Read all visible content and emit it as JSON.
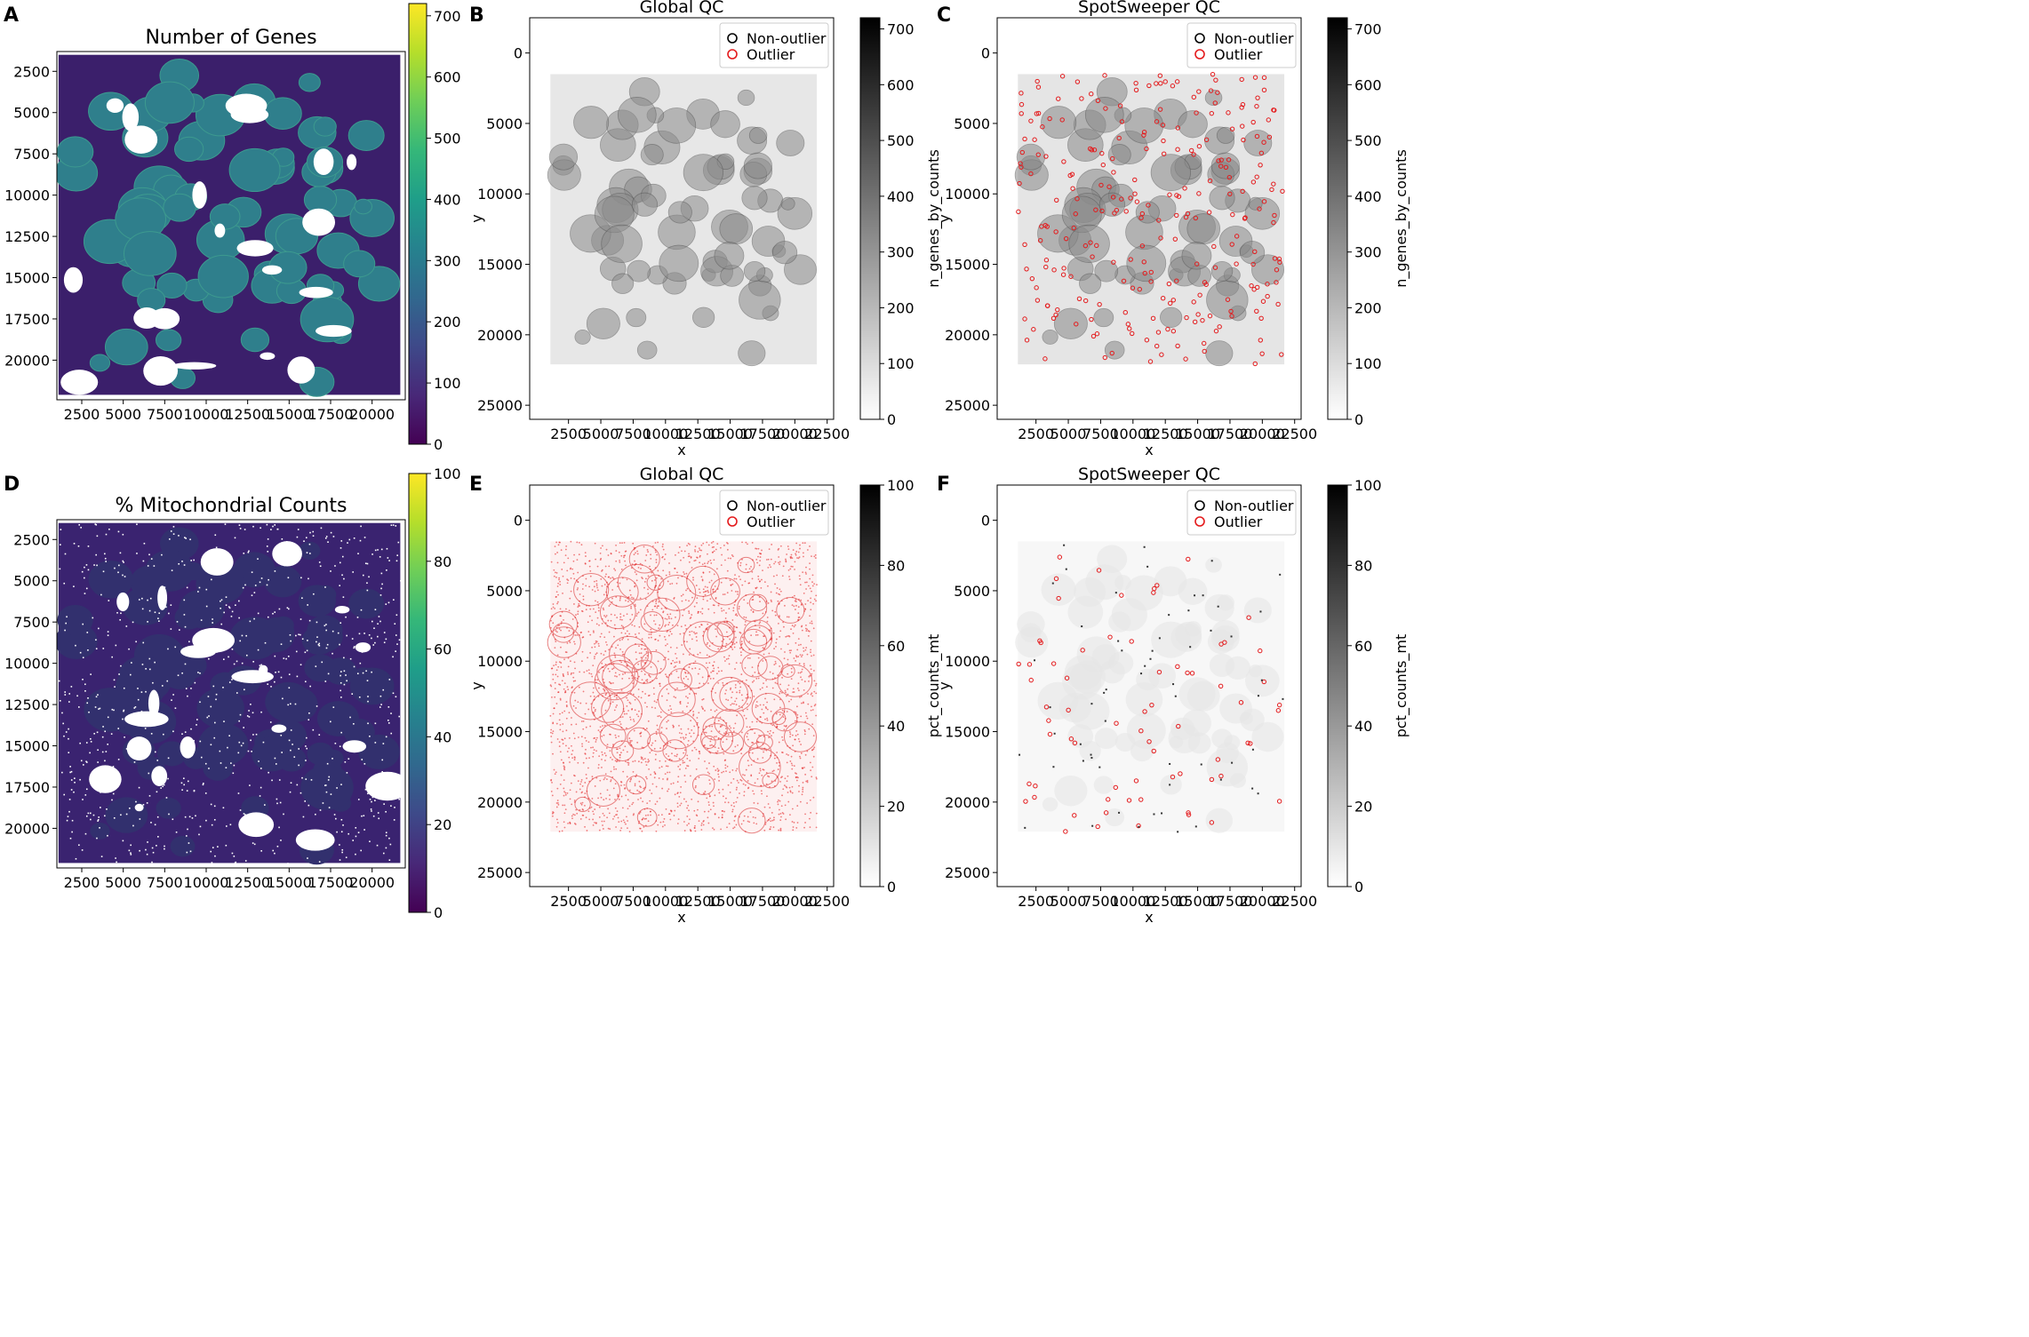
{
  "chart_data": [
    {
      "id": "A",
      "panel_label": "A",
      "type": "heatmap",
      "title": "Number of Genes",
      "xlabel": "",
      "ylabel": "",
      "xlim": [
        1000,
        22000
      ],
      "ylim": [
        22400,
        1300
      ],
      "y_inverted": true,
      "xticks": [
        2500,
        5000,
        7500,
        10000,
        12500,
        15000,
        17500,
        20000
      ],
      "xtick_labels": [
        "2500",
        "5000",
        "7500",
        "10000",
        "12500",
        "15000",
        "17500",
        "20000"
      ],
      "yticks": [
        2500,
        5000,
        7500,
        10000,
        12500,
        15000,
        17500,
        20000
      ],
      "ytick_labels": [
        "2500",
        "5000",
        "7500",
        "10000",
        "12500",
        "15000",
        "17500",
        "20000"
      ],
      "colorbar": {
        "label": "",
        "colormap": "viridis",
        "min": 0,
        "max": 720,
        "ticks": [
          0,
          100,
          200,
          300,
          400,
          500,
          600,
          700
        ],
        "tick_labels": [
          "0",
          "100",
          "200",
          "300",
          "400",
          "500",
          "600",
          "700"
        ]
      },
      "tissue_color": "#3b1f6b",
      "feature_color": "#2f7f8c"
    },
    {
      "id": "B",
      "panel_label": "B",
      "type": "scatter",
      "title": "Global QC",
      "xlabel": "x",
      "ylabel": "y",
      "xlim": [
        -500,
        23000
      ],
      "ylim": [
        26000,
        -2500
      ],
      "y_inverted": true,
      "xticks": [
        2500,
        5000,
        7500,
        10000,
        12500,
        15000,
        17500,
        20000,
        22500
      ],
      "xtick_labels": [
        "2500",
        "5000",
        "7500",
        "10000",
        "12500",
        "15000",
        "17500",
        "20000",
        "22500"
      ],
      "yticks": [
        0,
        5000,
        10000,
        15000,
        20000,
        25000
      ],
      "ytick_labels": [
        "0",
        "5000",
        "10000",
        "15000",
        "20000",
        "25000"
      ],
      "legend": {
        "position": "top-right",
        "entries": [
          {
            "label": "Non-outlier",
            "color": "#000000"
          },
          {
            "label": "Outlier",
            "color": "#e41a1c"
          }
        ]
      },
      "colorbar": {
        "label": "n_genes_by_counts",
        "colormap": "gray_r",
        "min": 0,
        "max": 720,
        "ticks": [
          0,
          100,
          200,
          300,
          400,
          500,
          600,
          700
        ],
        "tick_labels": [
          "0",
          "100",
          "200",
          "300",
          "400",
          "500",
          "600",
          "700"
        ]
      },
      "tissue_color": "#d4d4d4",
      "feature_color": "#8c8c8c",
      "outlier_density": "low"
    },
    {
      "id": "C",
      "panel_label": "C",
      "type": "scatter",
      "title": "SpotSweeper QC",
      "xlabel": "x",
      "ylabel": "y",
      "xlim": [
        -500,
        23000
      ],
      "ylim": [
        26000,
        -2500
      ],
      "y_inverted": true,
      "xticks": [
        2500,
        5000,
        7500,
        10000,
        12500,
        15000,
        17500,
        20000,
        22500
      ],
      "xtick_labels": [
        "2500",
        "5000",
        "7500",
        "10000",
        "12500",
        "15000",
        "17500",
        "20000",
        "22500"
      ],
      "yticks": [
        0,
        5000,
        10000,
        15000,
        20000,
        25000
      ],
      "ytick_labels": [
        "0",
        "5000",
        "10000",
        "15000",
        "20000",
        "25000"
      ],
      "legend": {
        "position": "top-right",
        "entries": [
          {
            "label": "Non-outlier",
            "color": "#000000"
          },
          {
            "label": "Outlier",
            "color": "#e41a1c"
          }
        ]
      },
      "colorbar": {
        "label": "n_genes_by_counts",
        "colormap": "gray_r",
        "min": 0,
        "max": 720,
        "ticks": [
          0,
          100,
          200,
          300,
          400,
          500,
          600,
          700
        ],
        "tick_labels": [
          "0",
          "100",
          "200",
          "300",
          "400",
          "500",
          "600",
          "700"
        ]
      },
      "tissue_color": "#cfcfcf",
      "feature_color": "#8a8a8a",
      "outlier_density": "medium"
    },
    {
      "id": "D",
      "panel_label": "D",
      "type": "heatmap",
      "title": "% Mitochondrial Counts",
      "xlabel": "",
      "ylabel": "",
      "xlim": [
        1000,
        22000
      ],
      "ylim": [
        22400,
        1300
      ],
      "y_inverted": true,
      "xticks": [
        2500,
        5000,
        7500,
        10000,
        12500,
        15000,
        17500,
        20000
      ],
      "xtick_labels": [
        "2500",
        "5000",
        "7500",
        "10000",
        "12500",
        "15000",
        "17500",
        "20000"
      ],
      "yticks": [
        2500,
        5000,
        7500,
        10000,
        12500,
        15000,
        17500,
        20000
      ],
      "ytick_labels": [
        "2500",
        "5000",
        "7500",
        "10000",
        "12500",
        "15000",
        "17500",
        "20000"
      ],
      "colorbar": {
        "label": "",
        "colormap": "viridis",
        "min": 0,
        "max": 100,
        "ticks": [
          0,
          20,
          40,
          60,
          80,
          100
        ],
        "tick_labels": [
          "0",
          "20",
          "40",
          "60",
          "80",
          "100"
        ]
      },
      "tissue_color": "#3a2370",
      "feature_color": "#32306e"
    },
    {
      "id": "E",
      "panel_label": "E",
      "type": "scatter",
      "title": "Global QC",
      "xlabel": "x",
      "ylabel": "y",
      "xlim": [
        -500,
        23000
      ],
      "ylim": [
        26000,
        -2500
      ],
      "y_inverted": true,
      "xticks": [
        2500,
        5000,
        7500,
        10000,
        12500,
        15000,
        17500,
        20000,
        22500
      ],
      "xtick_labels": [
        "2500",
        "5000",
        "7500",
        "10000",
        "12500",
        "15000",
        "17500",
        "20000",
        "22500"
      ],
      "yticks": [
        0,
        5000,
        10000,
        15000,
        20000,
        25000
      ],
      "ytick_labels": [
        "0",
        "5000",
        "10000",
        "15000",
        "20000",
        "25000"
      ],
      "legend": {
        "position": "top-right",
        "entries": [
          {
            "label": "Non-outlier",
            "color": "#000000"
          },
          {
            "label": "Outlier",
            "color": "#e41a1c"
          }
        ]
      },
      "colorbar": {
        "label": "pct_counts_mt",
        "colormap": "gray_r",
        "min": 0,
        "max": 100,
        "ticks": [
          0,
          20,
          40,
          60,
          80,
          100
        ],
        "tick_labels": [
          "0",
          "20",
          "40",
          "60",
          "80",
          "100"
        ]
      },
      "tissue_color": "#fbe3e3",
      "feature_color": "#f3b0b0",
      "outlier_density": "high"
    },
    {
      "id": "F",
      "panel_label": "F",
      "type": "scatter",
      "title": "SpotSweeper QC",
      "xlabel": "x",
      "ylabel": "y",
      "xlim": [
        -500,
        23000
      ],
      "ylim": [
        26000,
        -2500
      ],
      "y_inverted": true,
      "xticks": [
        2500,
        5000,
        7500,
        10000,
        12500,
        15000,
        17500,
        20000,
        22500
      ],
      "xtick_labels": [
        "2500",
        "5000",
        "7500",
        "10000",
        "12500",
        "15000",
        "17500",
        "20000",
        "22500"
      ],
      "yticks": [
        0,
        5000,
        10000,
        15000,
        20000,
        25000
      ],
      "ytick_labels": [
        "0",
        "5000",
        "10000",
        "15000",
        "20000",
        "25000"
      ],
      "legend": {
        "position": "top-right",
        "entries": [
          {
            "label": "Non-outlier",
            "color": "#000000"
          },
          {
            "label": "Outlier",
            "color": "#e41a1c"
          }
        ]
      },
      "colorbar": {
        "label": "pct_counts_mt",
        "colormap": "gray_r",
        "min": 0,
        "max": 100,
        "ticks": [
          0,
          20,
          40,
          60,
          80,
          100
        ],
        "tick_labels": [
          "0",
          "20",
          "40",
          "60",
          "80",
          "100"
        ]
      },
      "tissue_color": "#f0f0f0",
      "feature_color": "#e6e6e6",
      "outlier_density": "sparse"
    }
  ]
}
